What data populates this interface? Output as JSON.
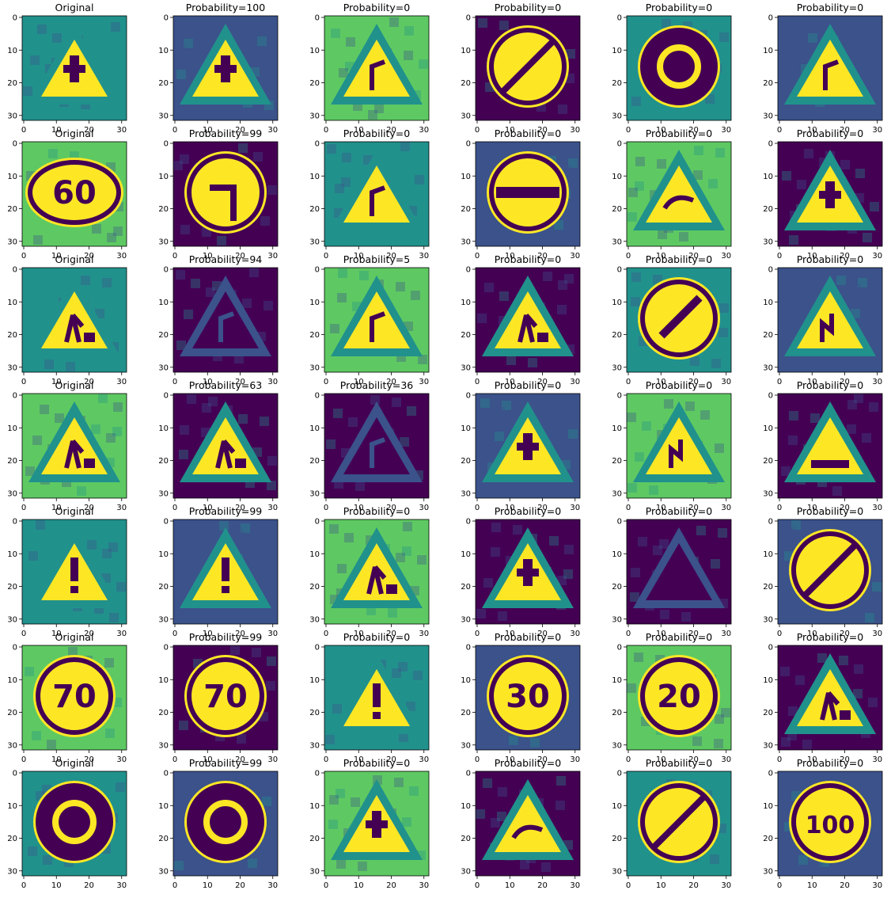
{
  "figure": {
    "grid": {
      "rows": 7,
      "cols": 6
    },
    "axes": {
      "xticks": [
        "0",
        "10",
        "20",
        "30"
      ],
      "yticks": [
        "0",
        "10",
        "20",
        "30"
      ]
    },
    "colormap": "viridis",
    "colors": {
      "dark": "#440154",
      "mid_dark": "#3b528b",
      "teal": "#21918c",
      "green": "#5ec962",
      "yellow": "#fde725"
    },
    "rows": [
      {
        "titles": [
          "Original",
          "Probability=100",
          "Probability=0",
          "Probability=0",
          "Probability=0",
          "Probability=0"
        ],
        "signs": [
          "tri-priority",
          "tri-priority",
          "tri-curve",
          "circle-end",
          "circle-roundabout",
          "tri-curve"
        ]
      },
      {
        "titles": [
          "Original",
          "Probability=99",
          "Probability=0",
          "Probability=0",
          "Probability=0",
          "Probability=0"
        ],
        "signs": [
          "oval-60",
          "circle-left-arrow",
          "tri-curve",
          "circle-noentry",
          "tri-slippery",
          "tri-priority"
        ]
      },
      {
        "titles": [
          "Original",
          "Probability=94",
          "Probability=5",
          "Probability=0",
          "Probability=0",
          "Probability=0"
        ],
        "signs": [
          "tri-children",
          "tri-curve-dark",
          "tri-curve",
          "tri-roadwork",
          "circle-keep-left",
          "tri-double-curve"
        ]
      },
      {
        "titles": [
          "Original",
          "Probability=63",
          "Probability=36",
          "Probability=0",
          "Probability=0",
          "Probability=0"
        ],
        "signs": [
          "tri-roadwork",
          "tri-roadwork",
          "tri-curve-dark",
          "tri-priority",
          "tri-double-curve",
          "tri-bumpy"
        ]
      },
      {
        "titles": [
          "Original",
          "Probability=99",
          "Probability=0",
          "Probability=0",
          "Probability=0",
          "Probability=0"
        ],
        "signs": [
          "tri-caution",
          "tri-caution",
          "tri-roadwork",
          "tri-priority",
          "tri-dark",
          "circle-end"
        ]
      },
      {
        "titles": [
          "Original",
          "Probability=99",
          "Probability=0",
          "Probability=0",
          "Probability=0",
          "Probability=0"
        ],
        "signs": [
          "circle-70",
          "circle-70",
          "tri-caution",
          "circle-30",
          "circle-20",
          "tri-roadwork"
        ]
      },
      {
        "titles": [
          "Original",
          "Probability=99",
          "Probability=0",
          "Probability=0",
          "Probability=0",
          "Probability=0"
        ],
        "signs": [
          "circle-roundabout",
          "circle-roundabout",
          "tri-priority",
          "tri-slippery",
          "circle-end",
          "circle-100"
        ]
      }
    ]
  }
}
